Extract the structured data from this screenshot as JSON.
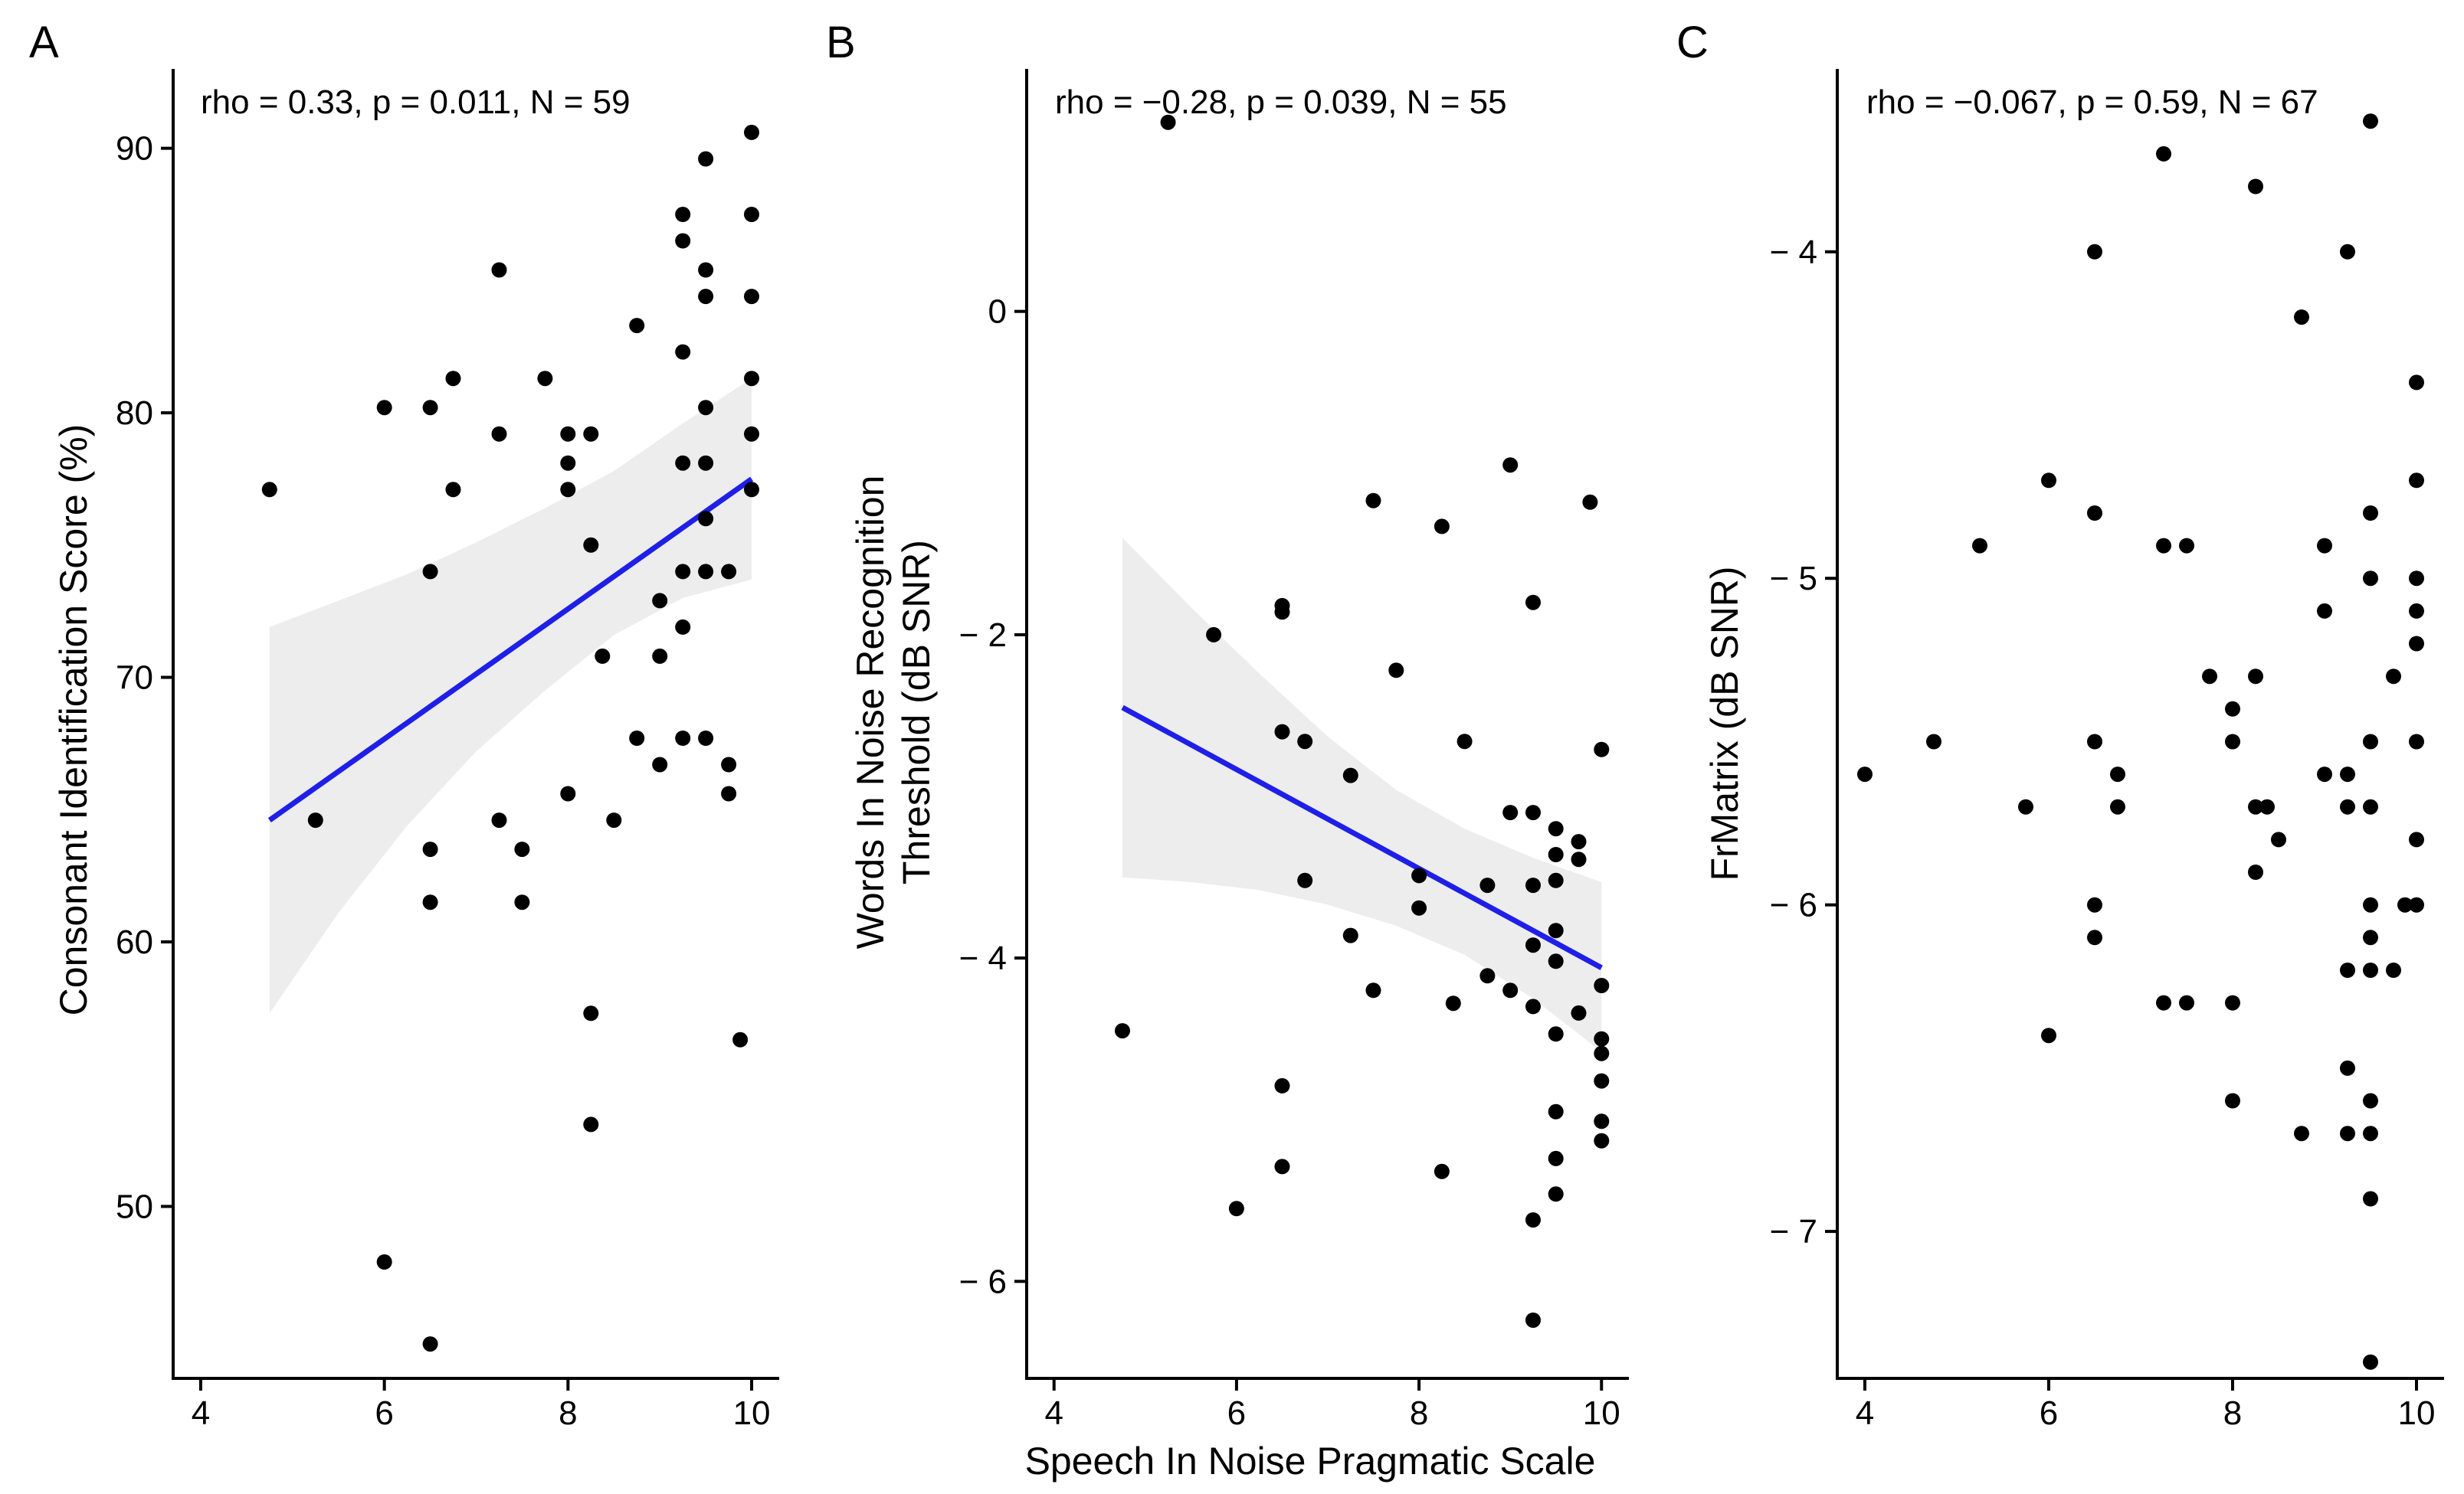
{
  "figure": {
    "xlabel": "Speech In Noise Pragmatic Scale"
  },
  "chart_data": [
    {
      "type": "scatter",
      "panel": "A",
      "annotation": "rho = 0.33, p = 0.011, N = 59",
      "ylabel": "Consonant Identification Score (%)",
      "xlim": [
        3.7,
        10.3
      ],
      "ylim": [
        43.5,
        93
      ],
      "xticks": [
        4,
        6,
        8,
        10
      ],
      "yticks": [
        50,
        60,
        70,
        80,
        90
      ],
      "xtick_labels": [
        "4",
        "6",
        "8",
        "10"
      ],
      "ytick_labels": [
        "50",
        "60",
        "70",
        "80",
        "90"
      ],
      "points": [
        [
          4.75,
          77.1
        ],
        [
          5.25,
          64.6
        ],
        [
          6,
          80.2
        ],
        [
          6,
          47.9
        ],
        [
          6.5,
          80.2
        ],
        [
          6.5,
          74
        ],
        [
          6.5,
          63.5
        ],
        [
          6.5,
          61.5
        ],
        [
          6.5,
          44.8
        ],
        [
          6.75,
          81.3
        ],
        [
          6.75,
          77.1
        ],
        [
          7.25,
          85.4
        ],
        [
          7.25,
          79.2
        ],
        [
          7.25,
          64.6
        ],
        [
          7.5,
          63.5
        ],
        [
          7.5,
          61.5
        ],
        [
          7.75,
          81.3
        ],
        [
          8,
          79.2
        ],
        [
          8,
          78.1
        ],
        [
          8,
          77.1
        ],
        [
          8,
          65.6
        ],
        [
          8.25,
          79.2
        ],
        [
          8.25,
          75
        ],
        [
          8.25,
          57.3
        ],
        [
          8.25,
          53.1
        ],
        [
          8.375,
          70.8
        ],
        [
          8.5,
          64.6
        ],
        [
          8.75,
          83.3
        ],
        [
          8.75,
          67.7
        ],
        [
          9,
          72.9
        ],
        [
          9,
          70.8
        ],
        [
          9,
          66.7
        ],
        [
          9.25,
          87.5
        ],
        [
          9.25,
          86.5
        ],
        [
          9.25,
          82.3
        ],
        [
          9.25,
          78.1
        ],
        [
          9.25,
          74
        ],
        [
          9.25,
          71.9
        ],
        [
          9.25,
          67.7
        ],
        [
          9.5,
          89.6
        ],
        [
          9.5,
          85.4
        ],
        [
          9.5,
          84.4
        ],
        [
          9.5,
          80.2
        ],
        [
          9.5,
          78.1
        ],
        [
          9.5,
          76
        ],
        [
          9.5,
          74
        ],
        [
          9.5,
          67.7
        ],
        [
          9.75,
          74
        ],
        [
          9.75,
          66.7
        ],
        [
          9.75,
          65.6
        ],
        [
          9.875,
          56.3
        ],
        [
          10,
          90.6
        ],
        [
          10,
          87.5
        ],
        [
          10,
          84.4
        ],
        [
          10,
          81.3
        ],
        [
          10,
          79.2
        ],
        [
          10,
          77.1
        ]
      ],
      "fit": {
        "x": [
          4.75,
          10
        ],
        "y": [
          64.6,
          77.5
        ]
      },
      "band": {
        "x": [
          4.75,
          5.5,
          6.25,
          7,
          7.75,
          8.5,
          9.25,
          10
        ],
        "lower": [
          57.3,
          61.1,
          64.4,
          67.2,
          69.5,
          71.6,
          73,
          73.7
        ],
        "upper": [
          71.9,
          72.9,
          73.9,
          75.1,
          76.4,
          77.8,
          79.6,
          81.3
        ]
      }
    },
    {
      "type": "scatter",
      "panel": "B",
      "annotation": "rho = −0.28, p = 0.039, N = 55",
      "ylabel": "Words In Noise Recognition\nThreshold (dB SNR)",
      "ylabel_lines": [
        "Words In Noise Recognition",
        "Threshold (dB SNR)"
      ],
      "xlim": [
        3.7,
        10.3
      ],
      "ylim": [
        -6.6,
        1.5
      ],
      "xticks": [
        4,
        6,
        8,
        10
      ],
      "yticks": [
        -6,
        -4,
        -2,
        0
      ],
      "xtick_labels": [
        "4",
        "6",
        "8",
        "10"
      ],
      "ytick_labels": [
        "− 6",
        "− 4",
        "− 2",
        "0"
      ],
      "points": [
        [
          4.75,
          -4.45
        ],
        [
          5.25,
          1.17
        ],
        [
          5.75,
          -2
        ],
        [
          6,
          -5.55
        ],
        [
          6.5,
          -1.82
        ],
        [
          6.5,
          -1.86
        ],
        [
          6.5,
          -2.6
        ],
        [
          6.5,
          -4.79
        ],
        [
          6.5,
          -5.29
        ],
        [
          6.75,
          -2.66
        ],
        [
          6.75,
          -3.52
        ],
        [
          7.25,
          -2.87
        ],
        [
          7.25,
          -3.86
        ],
        [
          7.5,
          -1.17
        ],
        [
          7.5,
          -4.2
        ],
        [
          7.75,
          -2.22
        ],
        [
          8,
          -3.49
        ],
        [
          8,
          -3.69
        ],
        [
          8.25,
          -1.33
        ],
        [
          8.25,
          -5.32
        ],
        [
          8.375,
          -4.28
        ],
        [
          8.5,
          -2.66
        ],
        [
          8.75,
          -3.55
        ],
        [
          8.75,
          -4.11
        ],
        [
          9,
          -0.95
        ],
        [
          9,
          -3.1
        ],
        [
          9,
          -4.2
        ],
        [
          9.25,
          -1.8
        ],
        [
          9.25,
          -3.1
        ],
        [
          9.25,
          -3.55
        ],
        [
          9.25,
          -3.92
        ],
        [
          9.25,
          -4.3
        ],
        [
          9.25,
          -5.62
        ],
        [
          9.25,
          -6.24
        ],
        [
          9.5,
          -3.2
        ],
        [
          9.5,
          -3.36
        ],
        [
          9.5,
          -3.52
        ],
        [
          9.5,
          -3.83
        ],
        [
          9.5,
          -4.02
        ],
        [
          9.5,
          -4.47
        ],
        [
          9.5,
          -4.95
        ],
        [
          9.5,
          -5.24
        ],
        [
          9.5,
          -5.46
        ],
        [
          9.75,
          -3.28
        ],
        [
          9.75,
          -3.39
        ],
        [
          9.75,
          -4.34
        ],
        [
          9.875,
          -1.18
        ],
        [
          10,
          -2.71
        ],
        [
          10,
          -4.17
        ],
        [
          10,
          -4.5
        ],
        [
          10,
          -4.59
        ],
        [
          10,
          -4.76
        ],
        [
          10,
          -5.01
        ],
        [
          10,
          -5.13
        ]
      ],
      "fit": {
        "x": [
          4.75,
          10
        ],
        "y": [
          -2.45,
          -4.06
        ]
      },
      "band": {
        "x": [
          4.75,
          5.5,
          6.25,
          7,
          7.75,
          8.5,
          9.25,
          10
        ],
        "lower": [
          -3.5,
          -3.53,
          -3.58,
          -3.67,
          -3.8,
          -3.98,
          -4.25,
          -4.58
        ],
        "upper": [
          -1.4,
          -1.83,
          -2.24,
          -2.63,
          -2.96,
          -3.2,
          -3.38,
          -3.53
        ]
      }
    },
    {
      "type": "scatter",
      "panel": "C",
      "annotation": "rho = −0.067, p = 0.59, N = 67",
      "ylabel": "FrMatrix (dB SNR)",
      "xlim": [
        3.7,
        10.3
      ],
      "ylim": [
        -7.45,
        -3.44
      ],
      "xticks": [
        4,
        6,
        8,
        10
      ],
      "yticks": [
        -7,
        -6,
        -5,
        -4
      ],
      "xtick_labels": [
        "4",
        "6",
        "8",
        "10"
      ],
      "ytick_labels": [
        "− 7",
        "− 6",
        "− 5",
        "− 4"
      ],
      "points": [
        [
          4,
          -5.6
        ],
        [
          4.75,
          -5.5
        ],
        [
          5.25,
          -4.9
        ],
        [
          5.75,
          -5.7
        ],
        [
          6,
          -4.7
        ],
        [
          6,
          -6.4
        ],
        [
          6.5,
          -4
        ],
        [
          6.5,
          -4.8
        ],
        [
          6.5,
          -5.5
        ],
        [
          6.5,
          -6
        ],
        [
          6.5,
          -6.1
        ],
        [
          6.75,
          -5.6
        ],
        [
          6.75,
          -5.7
        ],
        [
          7.25,
          -3.7
        ],
        [
          7.25,
          -4.9
        ],
        [
          7.25,
          -6.3
        ],
        [
          7.5,
          -4.9
        ],
        [
          7.5,
          -6.3
        ],
        [
          7.75,
          -5.3
        ],
        [
          8,
          -5.4
        ],
        [
          8,
          -5.5
        ],
        [
          8,
          -6.3
        ],
        [
          8,
          -6.6
        ],
        [
          8.25,
          -3.8
        ],
        [
          8.25,
          -5.3
        ],
        [
          8.25,
          -5.7
        ],
        [
          8.25,
          -5.9
        ],
        [
          8.375,
          -5.7
        ],
        [
          8.5,
          -5.8
        ],
        [
          8.75,
          -4.2
        ],
        [
          8.75,
          -6.7
        ],
        [
          9,
          -4.9
        ],
        [
          9,
          -5.1
        ],
        [
          9,
          -5.6
        ],
        [
          9.25,
          -4
        ],
        [
          9.25,
          -5.6
        ],
        [
          9.25,
          -5.7
        ],
        [
          9.25,
          -6.2
        ],
        [
          9.25,
          -6.5
        ],
        [
          9.25,
          -6.7
        ],
        [
          9.5,
          -3.6
        ],
        [
          9.5,
          -4.8
        ],
        [
          9.5,
          -5
        ],
        [
          9.5,
          -5.5
        ],
        [
          9.5,
          -5.7
        ],
        [
          9.5,
          -6
        ],
        [
          9.5,
          -6.1
        ],
        [
          9.5,
          -6.2
        ],
        [
          9.5,
          -6.6
        ],
        [
          9.5,
          -6.7
        ],
        [
          9.5,
          -6.9
        ],
        [
          9.5,
          -7.4
        ],
        [
          9.75,
          -5.3
        ],
        [
          9.75,
          -6.2
        ],
        [
          9.875,
          -6
        ],
        [
          10,
          -4.4
        ],
        [
          10,
          -4.7
        ],
        [
          10,
          -5
        ],
        [
          10,
          -5.1
        ],
        [
          10,
          -5.2
        ],
        [
          10,
          -5.5
        ],
        [
          10,
          -5.8
        ],
        [
          10,
          -6
        ]
      ]
    }
  ]
}
